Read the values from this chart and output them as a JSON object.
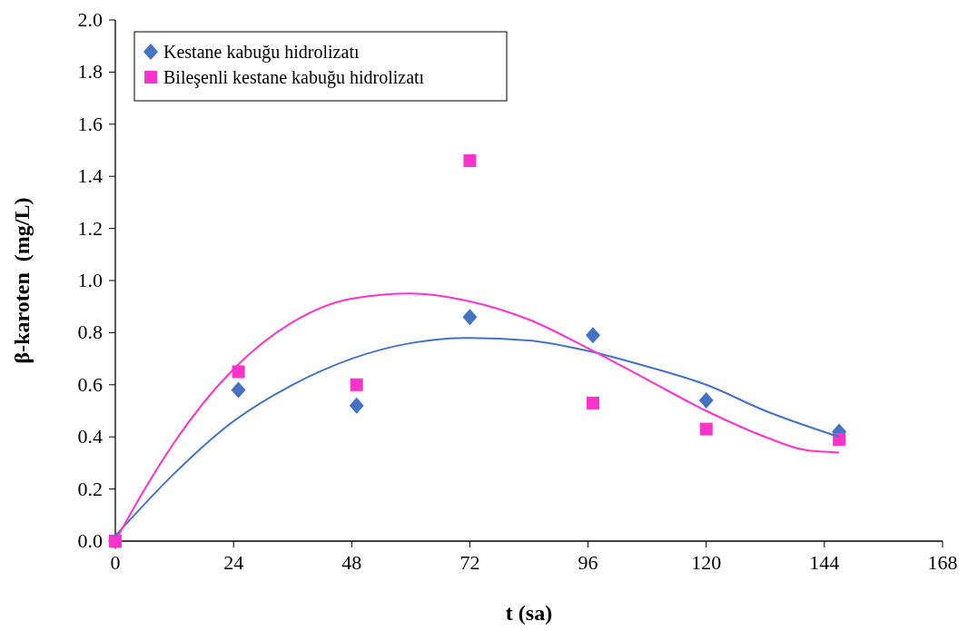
{
  "chart_data": {
    "type": "scatter",
    "xlabel": "t (sa)",
    "ylabel": "β-karoten  (mg/L)",
    "xlim": [
      0,
      168
    ],
    "ylim": [
      0,
      2.0
    ],
    "xticks": [
      0,
      24,
      48,
      72,
      96,
      120,
      144,
      168
    ],
    "yticks": [
      {
        "value": 0,
        "label": "0.0"
      },
      {
        "value": 0.2,
        "label": "0.2"
      },
      {
        "value": 0.4,
        "label": "0.4"
      },
      {
        "value": 0.6,
        "label": "0.6"
      },
      {
        "value": 0.8,
        "label": "0.8"
      },
      {
        "value": 1.0,
        "label": "1.0"
      },
      {
        "value": 1.2,
        "label": "1.2"
      },
      {
        "value": 1.4,
        "label": "1.4"
      },
      {
        "value": 1.6,
        "label": "1.6"
      },
      {
        "value": 1.8,
        "label": "1.8"
      },
      {
        "value": 2.0,
        "label": "2.0"
      }
    ],
    "legend": "top left",
    "grid": false,
    "x": [
      0,
      25,
      49,
      72,
      97,
      120,
      147
    ],
    "series": [
      {
        "name": "Kestane kabuğu hidrolizatı",
        "color": "#4472c4",
        "marker": "diamond",
        "values": [
          0,
          0.58,
          0.52,
          0.86,
          0.79,
          0.54,
          0.42
        ]
      },
      {
        "name": "Bileşenli kestane kabuğu hidrolizatı",
        "color": "#ff33cc",
        "marker": "square",
        "values": [
          0,
          0.65,
          0.6,
          1.46,
          0.53,
          0.43,
          0.39
        ]
      },
      {
        "type": "line",
        "color": "#4472c4",
        "marker": "none",
        "x": [
          0,
          12,
          24,
          36,
          48,
          60,
          72,
          84,
          96,
          108,
          120,
          132,
          147
        ],
        "values": [
          0.02,
          0.26,
          0.46,
          0.6,
          0.7,
          0.76,
          0.78,
          0.77,
          0.73,
          0.67,
          0.6,
          0.5,
          0.4
        ]
      },
      {
        "type": "line",
        "color": "#ff33cc",
        "marker": "none",
        "x": [
          0,
          6,
          12,
          24,
          36,
          48,
          60,
          72,
          84,
          96,
          108,
          120,
          132,
          140,
          147
        ],
        "values": [
          0,
          0.2,
          0.38,
          0.66,
          0.84,
          0.93,
          0.95,
          0.92,
          0.85,
          0.74,
          0.62,
          0.5,
          0.4,
          0.35,
          0.34
        ]
      }
    ]
  }
}
